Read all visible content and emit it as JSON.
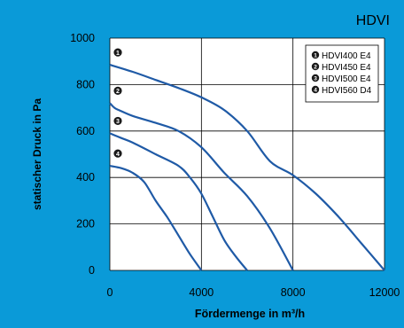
{
  "chart_data": {
    "type": "line",
    "title": "HDVI",
    "xlabel": "Fördermenge in m³/h",
    "ylabel": "statischer Druck in Pa",
    "xlim": [
      0,
      12000
    ],
    "ylim": [
      0,
      1000
    ],
    "x_ticks": [
      "0",
      "4000",
      "8000",
      "12000"
    ],
    "y_ticks": [
      "0",
      "200",
      "400",
      "600",
      "800",
      "1000"
    ],
    "grid": true,
    "legend_position": "top-right",
    "line_color": "#1f5aa6",
    "series": [
      {
        "marker": "1",
        "name": "HDVI400 E4",
        "x": [
          0,
          1000,
          2000,
          3000,
          4000,
          5000,
          6000,
          7000,
          8000,
          9000,
          10000,
          11000,
          12000
        ],
        "y": [
          885,
          855,
          820,
          785,
          745,
          690,
          600,
          470,
          410,
          330,
          230,
          115,
          0
        ]
      },
      {
        "marker": "2",
        "name": "HDVI450 E4",
        "x": [
          0,
          200,
          400,
          1000,
          2000,
          3000,
          4000,
          5000,
          6000,
          7000,
          8000
        ],
        "y": [
          720,
          700,
          690,
          665,
          635,
          600,
          530,
          420,
          320,
          180,
          0
        ]
      },
      {
        "marker": "3",
        "name": "HDVI500 E4",
        "x": [
          0,
          500,
          1000,
          2000,
          3000,
          3500,
          4000,
          4500,
          5000,
          5500,
          6000
        ],
        "y": [
          590,
          570,
          550,
          500,
          450,
          400,
          330,
          230,
          130,
          60,
          0
        ]
      },
      {
        "marker": "4",
        "name": "HDVI560 D4",
        "x": [
          0,
          500,
          1000,
          1500,
          2000,
          2500,
          3000,
          3500,
          4000
        ],
        "y": [
          450,
          440,
          420,
          380,
          300,
          230,
          150,
          70,
          0
        ]
      }
    ]
  }
}
